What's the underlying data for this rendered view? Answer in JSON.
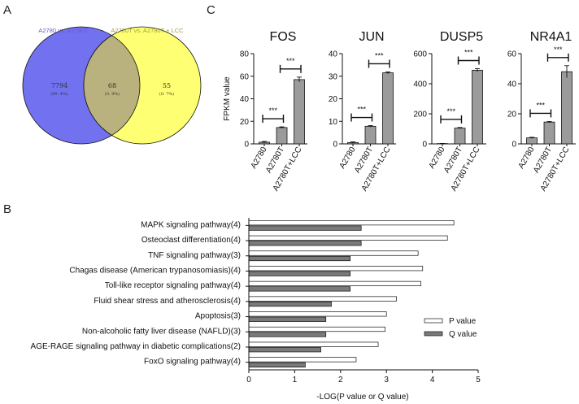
{
  "panels": {
    "a": "A",
    "b": "B",
    "c": "C"
  },
  "venn": {
    "left_label": "A2780 vs. A2780T",
    "right_label": "A2780T vs. A2780T + LCC",
    "left_only": "7794",
    "left_only_pct": "(99. 4%)",
    "overlap": "68",
    "overlap_pct": "(0. 9%)",
    "right_only": "55",
    "right_only_pct": "(0. 7%)",
    "colors": {
      "left": "#7272f0",
      "right": "#ffff73",
      "overlap": "#b9b27e",
      "left_text": "#6a5acd",
      "right_text": "#a0a040"
    }
  },
  "chart_data": [
    {
      "type": "bar",
      "title": "FOS",
      "ylabel": "FPKM value",
      "categories": [
        "A2780",
        "A2780T",
        "A2780T+LCC"
      ],
      "values": [
        1.5,
        14.5,
        57
      ],
      "errors": [
        0.6,
        0.6,
        2.2
      ],
      "ylim": [
        0,
        80
      ],
      "yticks": [
        "0",
        "20",
        "40",
        "60",
        "80"
      ],
      "significance": [
        "***",
        "***"
      ]
    },
    {
      "type": "bar",
      "title": "JUN",
      "ylabel": "",
      "categories": [
        "A2780",
        "A2780T",
        "A2780T+LCC"
      ],
      "values": [
        0.6,
        7.8,
        31.5
      ],
      "errors": [
        0.3,
        0.3,
        0.4
      ],
      "ylim": [
        0,
        40
      ],
      "yticks": [
        "0",
        "10",
        "20",
        "30",
        "40"
      ],
      "significance": [
        "***",
        "***"
      ]
    },
    {
      "type": "bar",
      "title": "DUSP5",
      "ylabel": "",
      "categories": [
        "A2780",
        "A2780T",
        "A2780T+LCC"
      ],
      "values": [
        2,
        105,
        490
      ],
      "errors": [
        1,
        4,
        10
      ],
      "ylim": [
        0,
        600
      ],
      "yticks": [
        "0",
        "200",
        "400",
        "600"
      ],
      "significance": [
        "***",
        "***"
      ]
    },
    {
      "type": "bar",
      "title": "NR4A1",
      "ylabel": "",
      "categories": [
        "A2780",
        "A2780T",
        "A2780T+LCC"
      ],
      "values": [
        4,
        14.5,
        48
      ],
      "errors": [
        0.4,
        0.4,
        4
      ],
      "ylim": [
        0,
        60
      ],
      "yticks": [
        "0",
        "20",
        "40",
        "60"
      ],
      "significance": [
        "***",
        "***"
      ]
    },
    {
      "type": "bar",
      "orientation": "horizontal",
      "categories": [
        "MAPK signaling pathway(4)",
        "Osteoclast differentiation(4)",
        "TNF signaling pathway(3)",
        "Chagas disease (American trypanosomiasis)(4)",
        "Toll-like receptor signaling pathway(4)",
        "Fluid shear stress and atherosclerosis(4)",
        "Apoptosis(3)",
        "Non-alcoholic fatty liver disease (NAFLD)(3)",
        "AGE-RAGE signaling pathway in diabetic complications(2)",
        "FoxO signaling pathway(4)"
      ],
      "series": [
        {
          "name": "P value",
          "values": [
            4.47,
            4.33,
            3.69,
            3.79,
            3.75,
            3.22,
            3.0,
            2.97,
            2.82,
            2.34
          ],
          "color": "#ffffff"
        },
        {
          "name": "Q value",
          "values": [
            2.45,
            2.45,
            2.21,
            2.21,
            2.21,
            1.8,
            1.68,
            1.68,
            1.57,
            1.23
          ],
          "color": "#7a7a7a"
        }
      ],
      "xlabel": "-LOG(P value or Q value)",
      "xlim": [
        0,
        5
      ],
      "xticks": [
        "0",
        "1",
        "2",
        "3",
        "4",
        "5"
      ]
    }
  ]
}
